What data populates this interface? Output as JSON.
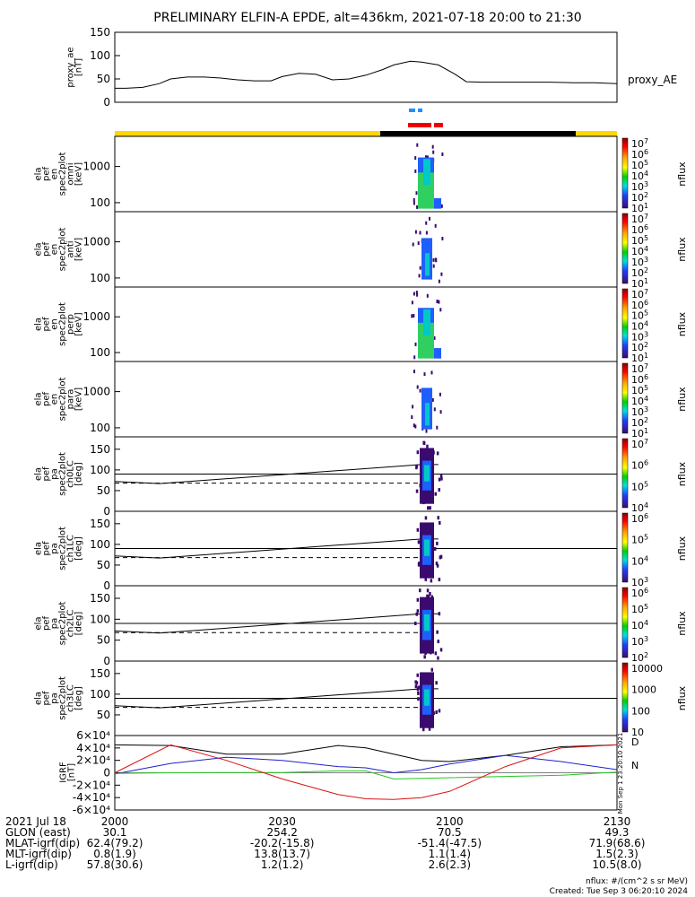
{
  "title": "PRELIMINARY ELFIN-A EPDE, alt=436km, 2021-07-18 20:00 to 21:30",
  "colors": {
    "bar_yellow": "#ffd700",
    "bar_black": "#000000",
    "marker_blue": "#1e90ff",
    "marker_red": "#ee0000",
    "spec_low": "#3b0a6e",
    "spec_mid": "#1f5fff",
    "spec_high": "#30d060",
    "spec_top": "#00c8c8"
  },
  "chart_data": [
    {
      "type": "line",
      "name": "proxy_ae",
      "ylabel_lines": [
        "proxy_ae",
        "[nT]"
      ],
      "legend": "proxy_AE",
      "ylim": [
        0,
        150
      ],
      "yticks": [
        "150",
        "100",
        "50",
        "0"
      ],
      "x_minutes": [
        0,
        2,
        5,
        8,
        10,
        13,
        16,
        19,
        22,
        25,
        28,
        30,
        33,
        36,
        39,
        42,
        45,
        48,
        50,
        53,
        55,
        58,
        61,
        63,
        66,
        70,
        74,
        78,
        82,
        86,
        90
      ],
      "values": [
        30,
        30,
        32,
        40,
        50,
        54,
        54,
        52,
        48,
        46,
        46,
        55,
        62,
        60,
        48,
        50,
        58,
        70,
        80,
        88,
        86,
        80,
        60,
        44,
        43,
        43,
        43,
        43,
        42,
        42,
        40
      ]
    },
    {
      "type": "heatmap",
      "name": "omni",
      "ylabel_lines": [
        "ela",
        "pef",
        "en",
        "spec2plot",
        "omni",
        "[keV]"
      ],
      "yticks": [
        "1000",
        "100"
      ],
      "zlabel": "nflux",
      "zticks": [
        "10^7",
        "10^6",
        "10^5",
        "10^4",
        "10^3",
        "10^2",
        "10^1"
      ]
    },
    {
      "type": "heatmap",
      "name": "anti",
      "ylabel_lines": [
        "ela",
        "pef",
        "en",
        "spec2plot",
        "anti",
        "[keV]"
      ],
      "yticks": [
        "1000",
        "100"
      ],
      "zlabel": "nflux",
      "zticks": [
        "10^7",
        "10^6",
        "10^5",
        "10^4",
        "10^3",
        "10^2",
        "10^1"
      ]
    },
    {
      "type": "heatmap",
      "name": "perp",
      "ylabel_lines": [
        "ela",
        "pef",
        "en",
        "spec2plot",
        "perp",
        "[keV]"
      ],
      "yticks": [
        "1000",
        "100"
      ],
      "zlabel": "nflux",
      "zticks": [
        "10^7",
        "10^6",
        "10^5",
        "10^4",
        "10^3",
        "10^2",
        "10^1"
      ]
    },
    {
      "type": "heatmap",
      "name": "para",
      "ylabel_lines": [
        "ela",
        "pef",
        "en",
        "spec2plot",
        "para",
        "[keV]"
      ],
      "yticks": [
        "1000",
        "100"
      ],
      "zlabel": "nflux",
      "zticks": [
        "10^7",
        "10^6",
        "10^5",
        "10^4",
        "10^3",
        "10^2",
        "10^1"
      ]
    },
    {
      "type": "heatmap",
      "name": "ch0LC",
      "ylabel_lines": [
        "ela",
        "pef",
        "pa",
        "spec2plot",
        "ch0LC",
        "[deg]"
      ],
      "yticks": [
        "150",
        "100",
        "50",
        "0"
      ],
      "zlabel": "nflux",
      "zticks": [
        "10^7",
        "10^6",
        "10^5",
        "10^4"
      ]
    },
    {
      "type": "heatmap",
      "name": "ch1LC",
      "ylabel_lines": [
        "ela",
        "pef",
        "pa",
        "spec2plot",
        "ch1LC",
        "[deg]"
      ],
      "yticks": [
        "150",
        "100",
        "50",
        "0"
      ],
      "zlabel": "nflux",
      "zticks": [
        "10^6",
        "10^5",
        "10^4",
        "10^3"
      ]
    },
    {
      "type": "heatmap",
      "name": "ch2LC",
      "ylabel_lines": [
        "ela",
        "pef",
        "pa",
        "spec2plot",
        "ch2LC",
        "[deg]"
      ],
      "yticks": [
        "150",
        "100",
        "50",
        "0"
      ],
      "zlabel": "nflux",
      "zticks": [
        "10^6",
        "10^5",
        "10^4",
        "10^3",
        "10^2"
      ]
    },
    {
      "type": "heatmap",
      "name": "ch3LC",
      "ylabel_lines": [
        "ela",
        "pef",
        "pa",
        "spec2plot",
        "ch3LC",
        "[deg]"
      ],
      "yticks": [
        "150",
        "100",
        "50"
      ],
      "zlabel": "nflux",
      "zticks": [
        "10000",
        "1000",
        "100",
        "10"
      ]
    },
    {
      "type": "line",
      "name": "igrf",
      "ylabel_lines": [
        "IGRF",
        "[nT]"
      ],
      "ylim": [
        -60000,
        60000
      ],
      "yticks": [
        "6×10⁴",
        "4×10⁴",
        "2×10⁴",
        "0",
        "-2×10⁴",
        "-4×10⁴",
        "-6×10⁴"
      ],
      "legend_markers": [
        "D",
        "N"
      ],
      "side_note": "Mon Sep 1 23:20:10 2021",
      "x_minutes": [
        0,
        10,
        20,
        30,
        40,
        45,
        50,
        55,
        60,
        70,
        80,
        90
      ],
      "series": [
        {
          "name": "black",
          "color": "#000000",
          "values": [
            45000,
            44000,
            30000,
            30000,
            44000,
            40000,
            30000,
            20000,
            18000,
            28000,
            42000,
            45000
          ]
        },
        {
          "name": "blue",
          "color": "#1f1fcf",
          "values": [
            -2000,
            15000,
            25000,
            20000,
            10000,
            8000,
            0,
            5000,
            14000,
            28000,
            18000,
            5000
          ]
        },
        {
          "name": "green",
          "color": "#22c822",
          "values": [
            -1000,
            0,
            500,
            500,
            3000,
            3000,
            -10000,
            -9000,
            -8000,
            -6000,
            -4000,
            1000
          ]
        },
        {
          "name": "red",
          "color": "#dd1111",
          "values": [
            0,
            45000,
            20000,
            -10000,
            -35000,
            -42000,
            -43000,
            -40000,
            -30000,
            10000,
            40000,
            45000
          ]
        }
      ]
    }
  ],
  "footer": {
    "rows": [
      {
        "label": "2021 Jul 18",
        "values": [
          "2000",
          "2030",
          "2100",
          "2130"
        ]
      },
      {
        "label": "GLON (east)",
        "values": [
          "30.1",
          "254.2",
          "70.5",
          "49.3"
        ]
      },
      {
        "label": "MLAT-igrf(dip)",
        "values": [
          "62.4(79.2)",
          "-20.2(-15.8)",
          "-51.4(-47.5)",
          "71.9(68.6)"
        ]
      },
      {
        "label": "MLT-igrf(dip)",
        "values": [
          "0.8(1.9)",
          "13.8(13.7)",
          "1.1(1.4)",
          "1.5(2.3)"
        ]
      },
      {
        "label": "L-igrf(dip)",
        "values": [
          "57.8(30.6)",
          "1.2(1.2)",
          "2.6(2.3)",
          "10.5(8.0)"
        ]
      }
    ],
    "units_note": "nflux: #/(cm^2 s sr MeV)",
    "created": "Created: Tue Sep  3 06:20:10 2024"
  }
}
